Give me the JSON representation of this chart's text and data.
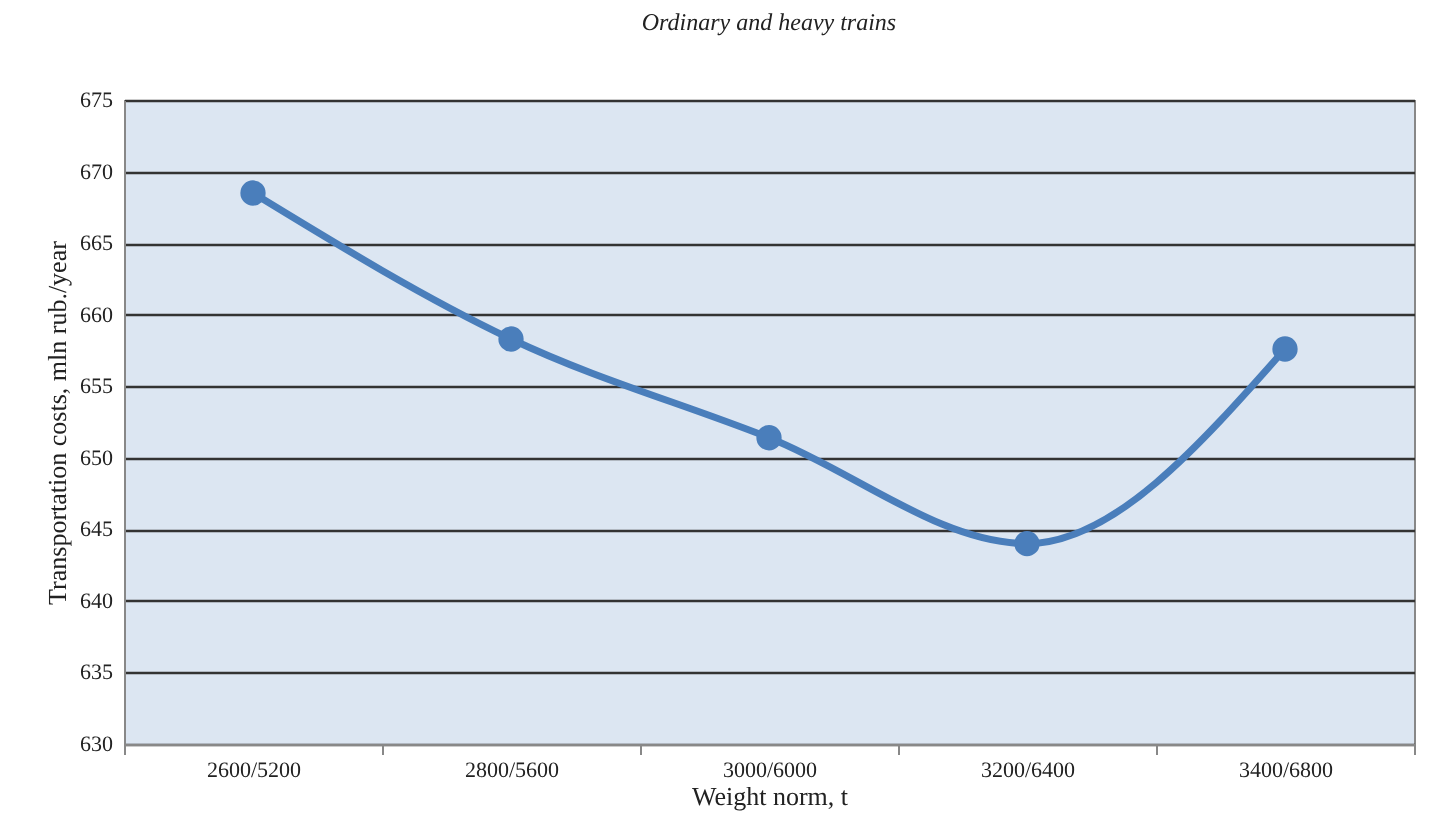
{
  "chart_data": {
    "type": "line",
    "title": "Ordinary and heavy trains",
    "xlabel": "Weight norm, t",
    "ylabel": "Transportation costs, mln rub./year",
    "categories": [
      "2600/5200",
      "2800/5600",
      "3000/6000",
      "3200/6400",
      "3400/6800"
    ],
    "series": [
      {
        "color": "#4a7ebb",
        "values": [
          668.5,
          658.3,
          651.4,
          644.0,
          657.6
        ]
      }
    ],
    "ylim": [
      630,
      675
    ],
    "yticks": [
      630,
      635,
      640,
      645,
      650,
      655,
      660,
      665,
      670,
      675
    ],
    "grid": "y",
    "marker": "circle",
    "line_style": "solid"
  }
}
